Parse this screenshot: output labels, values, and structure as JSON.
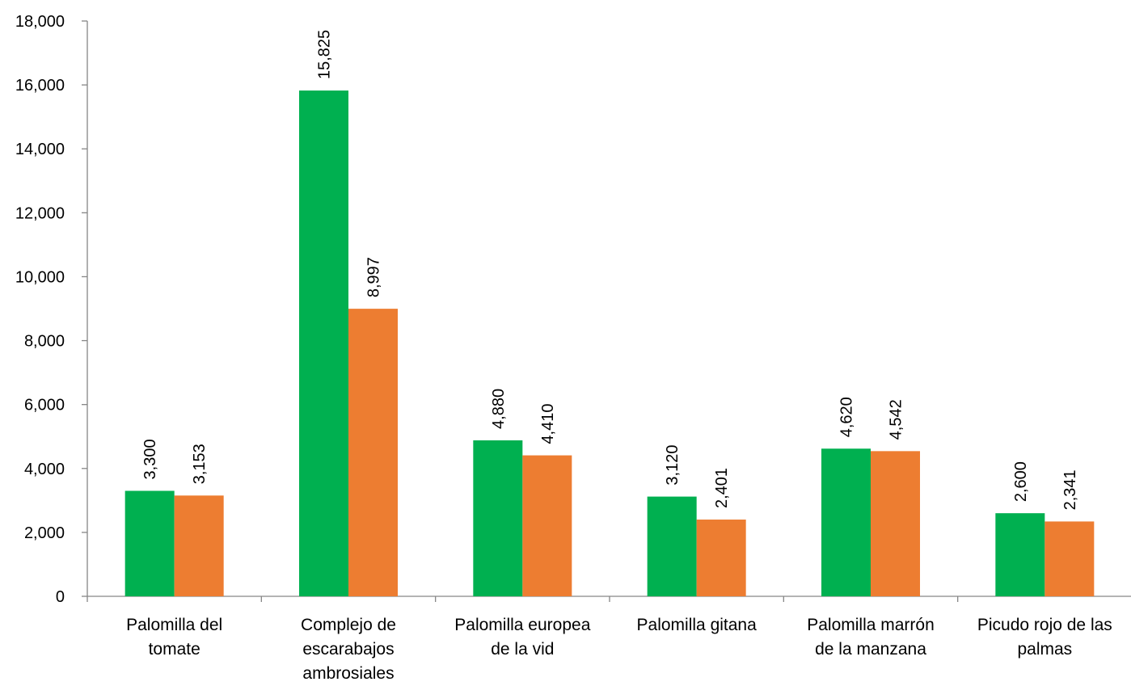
{
  "chart_data": {
    "type": "bar",
    "title": "",
    "xlabel": "",
    "ylabel": "",
    "ylim": [
      0,
      18000
    ],
    "yticks": [
      0,
      2000,
      4000,
      6000,
      8000,
      10000,
      12000,
      14000,
      16000,
      18000
    ],
    "ytick_labels": [
      "0",
      "2,000",
      "4,000",
      "6,000",
      "8,000",
      "10,000",
      "12,000",
      "14,000",
      "16,000",
      "18,000"
    ],
    "grid": false,
    "legend": "none",
    "categories": [
      [
        "Palomilla del",
        "tomate"
      ],
      [
        "Complejo de",
        "escarabajos",
        "ambrosiales"
      ],
      [
        "Palomilla europea",
        "de la vid"
      ],
      [
        "Palomilla gitana"
      ],
      [
        "Palomilla marrón",
        "de la manzana"
      ],
      [
        "Picudo  rojo de las",
        "palmas"
      ]
    ],
    "series": [
      {
        "color": "#00b050",
        "values": [
          3300,
          15825,
          4880,
          3120,
          4620,
          2600
        ],
        "labels": [
          "3,300",
          "15,825",
          "4,880",
          "3,120",
          "4,620",
          "2,600"
        ]
      },
      {
        "color": "#ed7d31",
        "values": [
          3153,
          8997,
          4410,
          2401,
          4542,
          2341
        ],
        "labels": [
          "3,153",
          "8,997",
          "4,410",
          "2,401",
          "4,542",
          "2,341"
        ]
      }
    ]
  }
}
